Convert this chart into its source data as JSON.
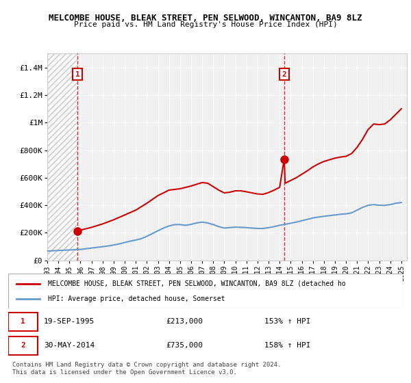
{
  "title": "MELCOMBE HOUSE, BLEAK STREET, PEN SELWOOD, WINCANTON, BA9 8LZ",
  "subtitle": "Price paid vs. HM Land Registry's House Price Index (HPI)",
  "ylabel": "",
  "xlim_start": 1993.0,
  "xlim_end": 2025.5,
  "ylim_min": 0,
  "ylim_max": 1500000,
  "yticks": [
    0,
    200000,
    400000,
    600000,
    800000,
    1000000,
    1200000,
    1400000
  ],
  "ytick_labels": [
    "£0",
    "£200K",
    "£400K",
    "£600K",
    "£800K",
    "£1M",
    "£1.2M",
    "£1.4M"
  ],
  "sale1_year": 1995.72,
  "sale1_price": 213000,
  "sale1_label": "1",
  "sale1_date": "19-SEP-1995",
  "sale1_hpi": "153% ↑ HPI",
  "sale2_year": 2014.41,
  "sale2_price": 735000,
  "sale2_label": "2",
  "sale2_date": "30-MAY-2014",
  "sale2_hpi": "158% ↑ HPI",
  "hatch_end_year": 1995.72,
  "line_color": "#cc0000",
  "hpi_color": "#6699cc",
  "background_color": "#ffffff",
  "plot_bg_color": "#f0f0f0",
  "grid_color": "#ffffff",
  "legend_label_red": "MELCOMBE HOUSE, BLEAK STREET, PEN SELWOOD, WINCANTON, BA9 8LZ (detached ho",
  "legend_label_blue": "HPI: Average price, detached house, Somerset",
  "footer": "Contains HM Land Registry data © Crown copyright and database right 2024.\nThis data is licensed under the Open Government Licence v3.0.",
  "hpi_years": [
    1993,
    1993.5,
    1994,
    1994.5,
    1995,
    1995.5,
    1996,
    1996.5,
    1997,
    1997.5,
    1998,
    1998.5,
    1999,
    1999.5,
    2000,
    2000.5,
    2001,
    2001.5,
    2002,
    2002.5,
    2003,
    2003.5,
    2004,
    2004.5,
    2005,
    2005.5,
    2006,
    2006.5,
    2007,
    2007.5,
    2008,
    2008.5,
    2009,
    2009.5,
    2010,
    2010.5,
    2011,
    2011.5,
    2012,
    2012.5,
    2013,
    2013.5,
    2014,
    2014.5,
    2015,
    2015.5,
    2016,
    2016.5,
    2017,
    2017.5,
    2018,
    2018.5,
    2019,
    2019.5,
    2020,
    2020.5,
    2021,
    2021.5,
    2022,
    2022.5,
    2023,
    2023.5,
    2024,
    2024.5,
    2025
  ],
  "hpi_values": [
    68000,
    70000,
    72000,
    74000,
    76000,
    78000,
    80000,
    85000,
    90000,
    95000,
    100000,
    105000,
    112000,
    120000,
    130000,
    140000,
    148000,
    158000,
    175000,
    195000,
    215000,
    235000,
    250000,
    260000,
    260000,
    255000,
    262000,
    272000,
    278000,
    272000,
    260000,
    245000,
    235000,
    238000,
    242000,
    240000,
    238000,
    235000,
    232000,
    232000,
    238000,
    245000,
    255000,
    262000,
    270000,
    278000,
    288000,
    298000,
    308000,
    315000,
    320000,
    325000,
    330000,
    335000,
    338000,
    345000,
    365000,
    385000,
    400000,
    405000,
    400000,
    400000,
    405000,
    415000,
    420000
  ],
  "red_years": [
    1995.72,
    1996,
    1997,
    1998,
    1999,
    2000,
    2001,
    2002,
    2003,
    2004,
    2005,
    2006,
    2007,
    2007.5,
    2008,
    2008.5,
    2009,
    2009.5,
    2010,
    2010.5,
    2011,
    2011.5,
    2012,
    2012.5,
    2013,
    2013.5,
    2014,
    2014.41,
    2014.5,
    2015,
    2015.5,
    2016,
    2016.5,
    2017,
    2017.5,
    2018,
    2018.5,
    2019,
    2019.5,
    2020,
    2020.5,
    2021,
    2021.5,
    2022,
    2022.5,
    2023,
    2023.5,
    2024,
    2024.5,
    2025
  ],
  "red_values": [
    213000,
    220000,
    240000,
    265000,
    295000,
    330000,
    365000,
    415000,
    470000,
    510000,
    520000,
    540000,
    565000,
    560000,
    535000,
    510000,
    490000,
    495000,
    505000,
    505000,
    498000,
    490000,
    482000,
    480000,
    492000,
    510000,
    530000,
    735000,
    560000,
    580000,
    600000,
    625000,
    650000,
    678000,
    700000,
    718000,
    730000,
    742000,
    750000,
    755000,
    775000,
    820000,
    880000,
    950000,
    990000,
    985000,
    990000,
    1020000,
    1060000,
    1100000
  ]
}
